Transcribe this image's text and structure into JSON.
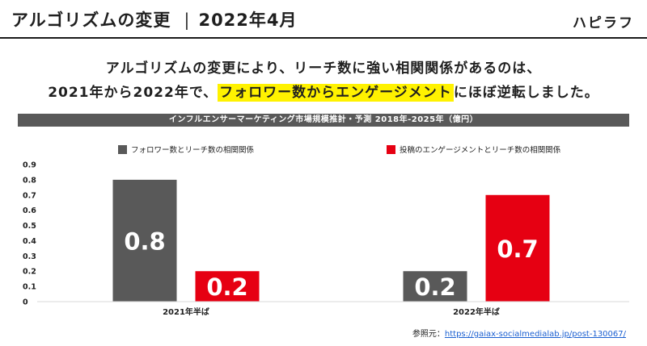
{
  "header": {
    "title": "アルゴリズムの変更",
    "separator": "|",
    "date": "2022年4月",
    "brand": "ハピラフ"
  },
  "headline": {
    "line1": "アルゴリズムの変更により、リーチ数に強い相関関係があるのは、",
    "line2_prefix": "2021年から2022年で、",
    "line2_highlight": "フォロワー数からエンゲージメント",
    "line2_suffix": "にほぼ逆転しました。"
  },
  "chart_banner": "インフルエンサーマーケティング市場規模推計・予測 2018年-2025年（億円）",
  "reference": {
    "label": "参照元：",
    "url": "https://gaiax-socialmedialab.jp/post-130067/"
  },
  "colors": {
    "series1": "#595959",
    "series2": "#e60012",
    "highlight": "#fff200"
  },
  "chart_data": {
    "type": "bar",
    "title": "インフルエンサーマーケティング市場規模推計・予測 2018年-2025年（億円）",
    "categories": [
      "2021年半ば",
      "2022年半ば"
    ],
    "series": [
      {
        "name": "フォロワー数とリーチ数の相関関係",
        "values": [
          0.8,
          0.2
        ],
        "labels": [
          "0.8",
          "0.2"
        ]
      },
      {
        "name": "投稿のエンゲージメントとリーチ数の相関関係",
        "values": [
          0.2,
          0.7
        ],
        "labels": [
          "0.2",
          "0.7"
        ]
      }
    ],
    "yticks": [
      "0",
      "0.1",
      "0.2",
      "0.3",
      "0.4",
      "0.5",
      "0.6",
      "0.7",
      "0.8",
      "0.9"
    ],
    "ylim": [
      0,
      0.9
    ],
    "grid": false,
    "legend": "top"
  }
}
